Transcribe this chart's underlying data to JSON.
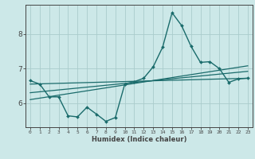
{
  "xlabel": "Humidex (Indice chaleur)",
  "bg_color": "#cce8e8",
  "line_color": "#1a6b6b",
  "grid_color": "#aacccc",
  "axis_color": "#444444",
  "xlim": [
    -0.5,
    23.5
  ],
  "ylim": [
    5.3,
    8.85
  ],
  "yticks": [
    6,
    7,
    8
  ],
  "xticks": [
    0,
    1,
    2,
    3,
    4,
    5,
    6,
    7,
    8,
    9,
    10,
    11,
    12,
    13,
    14,
    15,
    16,
    17,
    18,
    19,
    20,
    21,
    22,
    23
  ],
  "main_line_x": [
    0,
    1,
    2,
    3,
    4,
    5,
    6,
    7,
    8,
    9,
    10,
    11,
    12,
    13,
    14,
    15,
    16,
    17,
    18,
    19,
    20,
    21,
    22,
    23
  ],
  "main_line_y": [
    6.65,
    6.55,
    6.18,
    6.18,
    5.63,
    5.6,
    5.88,
    5.68,
    5.47,
    5.58,
    6.55,
    6.62,
    6.72,
    7.05,
    7.62,
    8.62,
    8.25,
    7.65,
    7.18,
    7.2,
    7.0,
    6.6,
    6.7,
    6.72
  ],
  "trend1_x": [
    0,
    23
  ],
  "trend1_y": [
    6.55,
    6.72
  ],
  "trend2_x": [
    0,
    23
  ],
  "trend2_y": [
    6.3,
    6.92
  ],
  "trend3_x": [
    0,
    23
  ],
  "trend3_y": [
    6.1,
    7.08
  ]
}
